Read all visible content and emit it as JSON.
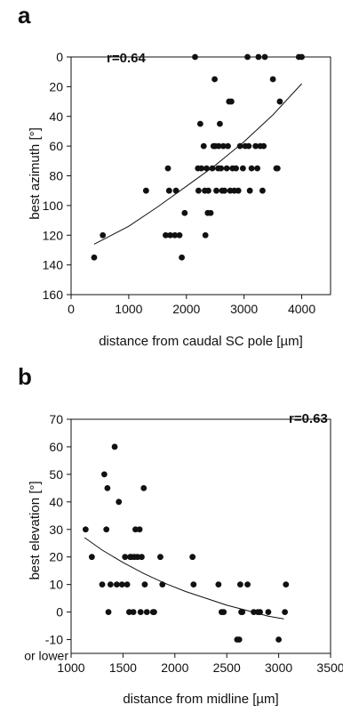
{
  "chart_data": [
    {
      "type": "scatter",
      "panel_label": "a",
      "annotation": "r=0.64",
      "xlabel": "distance from caudal SC pole [µm]",
      "ylabel": "best azimuth [°]",
      "xlim": [
        0,
        4500
      ],
      "ylim": [
        160,
        0
      ],
      "y_inverted": true,
      "xticks": [
        "0",
        "1000",
        "2000",
        "3000",
        "4000"
      ],
      "yticks": [
        "0",
        "20",
        "40",
        "60",
        "80",
        "100",
        "120",
        "140",
        "160"
      ],
      "xtick_values": [
        0,
        1000,
        2000,
        3000,
        4000
      ],
      "ytick_values": [
        0,
        20,
        40,
        60,
        80,
        100,
        120,
        140,
        160
      ],
      "grid": false,
      "fit_curve": {
        "type": "exponential",
        "x": [
          400,
          1000,
          1500,
          2000,
          2500,
          3000,
          3500,
          4000
        ],
        "y": [
          126,
          114,
          101,
          87,
          73,
          57,
          39,
          18
        ]
      },
      "points": [
        [
          400,
          135
        ],
        [
          550,
          120
        ],
        [
          1300,
          90
        ],
        [
          1640,
          120
        ],
        [
          1680,
          75
        ],
        [
          1700,
          90
        ],
        [
          1720,
          120
        ],
        [
          1800,
          120
        ],
        [
          1820,
          90
        ],
        [
          1880,
          120
        ],
        [
          1920,
          135
        ],
        [
          1970,
          105
        ],
        [
          2150,
          0
        ],
        [
          2200,
          75
        ],
        [
          2210,
          90
        ],
        [
          2240,
          45
        ],
        [
          2260,
          75
        ],
        [
          2300,
          60
        ],
        [
          2320,
          90
        ],
        [
          2330,
          120
        ],
        [
          2350,
          75
        ],
        [
          2370,
          105
        ],
        [
          2380,
          90
        ],
        [
          2420,
          105
        ],
        [
          2450,
          75
        ],
        [
          2470,
          60
        ],
        [
          2490,
          15
        ],
        [
          2500,
          60
        ],
        [
          2520,
          90
        ],
        [
          2550,
          75
        ],
        [
          2560,
          60
        ],
        [
          2580,
          45
        ],
        [
          2600,
          75
        ],
        [
          2620,
          90
        ],
        [
          2640,
          60
        ],
        [
          2660,
          90
        ],
        [
          2700,
          75
        ],
        [
          2720,
          60
        ],
        [
          2740,
          30
        ],
        [
          2760,
          90
        ],
        [
          2780,
          30
        ],
        [
          2800,
          75
        ],
        [
          2830,
          90
        ],
        [
          2860,
          75
        ],
        [
          2900,
          90
        ],
        [
          2930,
          60
        ],
        [
          2980,
          75
        ],
        [
          3020,
          60
        ],
        [
          3060,
          0
        ],
        [
          3080,
          60
        ],
        [
          3100,
          90
        ],
        [
          3130,
          75
        ],
        [
          3200,
          60
        ],
        [
          3230,
          75
        ],
        [
          3250,
          0
        ],
        [
          3280,
          60
        ],
        [
          3320,
          90
        ],
        [
          3340,
          60
        ],
        [
          3360,
          0
        ],
        [
          3500,
          15
        ],
        [
          3560,
          75
        ],
        [
          3580,
          75
        ],
        [
          3620,
          30
        ],
        [
          3950,
          0
        ],
        [
          4000,
          0
        ]
      ]
    },
    {
      "type": "scatter",
      "panel_label": "b",
      "annotation": "r=0.63",
      "xlabel": "distance from midline [µm]",
      "ylabel": "best elevation [°]",
      "xlim": [
        1000,
        3500
      ],
      "ylim": [
        -15,
        70
      ],
      "xticks": [
        "1000",
        "1500",
        "2000",
        "2500",
        "3000",
        "3500"
      ],
      "yticks": [
        "70",
        "60",
        "50",
        "40",
        "30",
        "20",
        "10",
        "0",
        "-10",
        "or lower"
      ],
      "xtick_values": [
        1000,
        1500,
        2000,
        2500,
        3000,
        3500
      ],
      "ytick_values": [
        70,
        60,
        50,
        40,
        30,
        20,
        10,
        0,
        -10
      ],
      "grid": false,
      "fit_curve": {
        "type": "exponential",
        "x": [
          1130,
          1300,
          1500,
          1700,
          1900,
          2100,
          2300,
          2500,
          2700,
          2900,
          3050
        ],
        "y": [
          27,
          22.5,
          18,
          14,
          10.5,
          7.5,
          5,
          2.5,
          0.5,
          -1.5,
          -2.5
        ]
      },
      "points": [
        [
          1140,
          30
        ],
        [
          1200,
          20
        ],
        [
          1300,
          10
        ],
        [
          1320,
          50
        ],
        [
          1340,
          30
        ],
        [
          1350,
          45
        ],
        [
          1360,
          0
        ],
        [
          1380,
          10
        ],
        [
          1420,
          60
        ],
        [
          1440,
          10
        ],
        [
          1460,
          40
        ],
        [
          1490,
          10
        ],
        [
          1520,
          20
        ],
        [
          1540,
          10
        ],
        [
          1560,
          0
        ],
        [
          1570,
          20
        ],
        [
          1580,
          20
        ],
        [
          1600,
          0
        ],
        [
          1610,
          20
        ],
        [
          1620,
          30
        ],
        [
          1640,
          20
        ],
        [
          1660,
          30
        ],
        [
          1670,
          0
        ],
        [
          1680,
          20
        ],
        [
          1700,
          45
        ],
        [
          1710,
          10
        ],
        [
          1730,
          0
        ],
        [
          1790,
          0
        ],
        [
          1800,
          0
        ],
        [
          1860,
          20
        ],
        [
          1880,
          10
        ],
        [
          2170,
          20
        ],
        [
          2180,
          10
        ],
        [
          2420,
          10
        ],
        [
          2450,
          0
        ],
        [
          2470,
          0
        ],
        [
          2600,
          -10
        ],
        [
          2620,
          -10
        ],
        [
          2630,
          10
        ],
        [
          2640,
          0
        ],
        [
          2650,
          0
        ],
        [
          2700,
          10
        ],
        [
          2760,
          0
        ],
        [
          2800,
          0
        ],
        [
          2820,
          0
        ],
        [
          2900,
          0
        ],
        [
          3000,
          -10
        ],
        [
          3060,
          0
        ],
        [
          3070,
          10
        ]
      ]
    }
  ]
}
